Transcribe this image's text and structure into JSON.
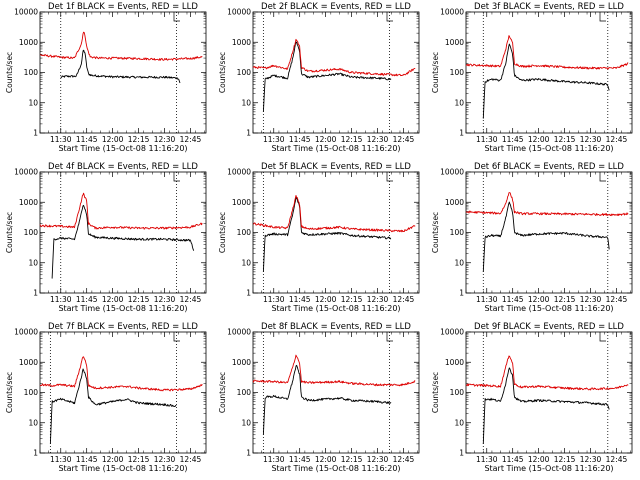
{
  "chart_data": [
    {
      "type": "line",
      "title": "Det 1f BLACK = Events, RED = LLD",
      "xlabel": "Start Time (15-Oct-08 11:16:20)",
      "ylabel": "Counts/sec",
      "yscale": "log",
      "ylim": [
        1,
        10000
      ],
      "xlim": [
        "11:18",
        "12:54"
      ],
      "xticks": [
        "11:30",
        "11:45",
        "12:00",
        "12:15",
        "12:30",
        "12:45"
      ],
      "yticks": [
        "1",
        "10",
        "100",
        "1000",
        "10000"
      ],
      "markers": [
        "11:30",
        "12:37"
      ],
      "series": [
        {
          "color": "#000000",
          "x": [
            "11:30",
            "11:33",
            "11:39",
            "11:42",
            "11:43",
            "11:44",
            "11:45",
            "11:46",
            "11:48",
            "12:00",
            "12:15",
            "12:30",
            "12:38",
            "12:39"
          ],
          "values": [
            70,
            75,
            75,
            200,
            560,
            450,
            160,
            90,
            80,
            72,
            70,
            70,
            65,
            45
          ]
        },
        {
          "color": "#dd0000",
          "x": [
            "11:18",
            "11:30",
            "11:38",
            "11:42",
            "11:43",
            "11:44",
            "11:45",
            "11:47",
            "11:52",
            "12:00",
            "12:15",
            "12:30",
            "12:45",
            "12:52"
          ],
          "values": [
            380,
            320,
            300,
            900,
            2200,
            1800,
            700,
            330,
            300,
            300,
            290,
            270,
            290,
            330
          ]
        }
      ]
    },
    {
      "type": "line",
      "title": "Det 2f BLACK = Events, RED = LLD",
      "xlabel": "Start Time (15-Oct-08 11:16:20)",
      "ylabel": "Counts/sec",
      "yscale": "log",
      "ylim": [
        1,
        10000
      ],
      "xlim": [
        "11:18",
        "12:54"
      ],
      "xticks": [
        "11:30",
        "11:45",
        "12:00",
        "12:15",
        "12:30",
        "12:45"
      ],
      "yticks": [
        "1",
        "10",
        "100",
        "1000",
        "10000"
      ],
      "markers": [
        "11:24",
        "12:37"
      ],
      "series": [
        {
          "color": "#000000",
          "x": [
            "11:24",
            "11:25",
            "11:30",
            "11:38",
            "11:41",
            "11:43",
            "11:45",
            "11:46",
            "11:50",
            "12:00",
            "12:08",
            "12:15",
            "12:30",
            "12:38"
          ],
          "values": [
            5,
            60,
            80,
            65,
            300,
            1100,
            500,
            90,
            70,
            80,
            90,
            70,
            65,
            60
          ]
        },
        {
          "color": "#dd0000",
          "x": [
            "11:18",
            "11:25",
            "11:30",
            "11:38",
            "11:41",
            "11:43",
            "11:45",
            "11:46",
            "11:50",
            "12:00",
            "12:08",
            "12:15",
            "12:30",
            "12:45",
            "12:52"
          ],
          "values": [
            150,
            140,
            170,
            130,
            500,
            1300,
            700,
            150,
            110,
            120,
            130,
            100,
            90,
            80,
            140
          ]
        }
      ]
    },
    {
      "type": "line",
      "title": "Det 3f BLACK = Events, RED = LLD",
      "xlabel": "Start Time (15-Oct-08 11:16:20)",
      "ylabel": "Counts/sec",
      "yscale": "log",
      "ylim": [
        1,
        10000
      ],
      "xlim": [
        "11:18",
        "12:54"
      ],
      "xticks": [
        "11:30",
        "11:45",
        "12:00",
        "12:15",
        "12:30",
        "12:45"
      ],
      "yticks": [
        "1",
        "10",
        "100",
        "1000",
        "10000"
      ],
      "markers": [
        "11:28",
        "12:40"
      ],
      "series": [
        {
          "color": "#000000",
          "x": [
            "11:28",
            "11:29",
            "11:33",
            "11:38",
            "11:41",
            "11:43",
            "11:45",
            "11:46",
            "11:50",
            "12:00",
            "12:15",
            "12:30",
            "12:40",
            "12:41"
          ],
          "values": [
            3,
            50,
            60,
            55,
            200,
            900,
            400,
            80,
            55,
            60,
            50,
            45,
            40,
            25
          ]
        },
        {
          "color": "#dd0000",
          "x": [
            "11:18",
            "11:30",
            "11:38",
            "11:41",
            "11:43",
            "11:45",
            "11:46",
            "11:50",
            "12:00",
            "12:15",
            "12:30",
            "12:45",
            "12:52"
          ],
          "values": [
            180,
            170,
            160,
            600,
            1700,
            900,
            200,
            160,
            170,
            150,
            140,
            140,
            200
          ]
        }
      ]
    },
    {
      "type": "line",
      "title": "Det 4f BLACK = Events, RED = LLD",
      "xlabel": "Start Time (15-Oct-08 11:16:20)",
      "ylabel": "Counts/sec",
      "yscale": "log",
      "ylim": [
        1,
        10000
      ],
      "xlim": [
        "11:18",
        "12:54"
      ],
      "xticks": [
        "11:30",
        "11:45",
        "12:00",
        "12:15",
        "12:30",
        "12:45"
      ],
      "yticks": [
        "1",
        "10",
        "100",
        "1000",
        "10000"
      ],
      "markers": [
        "11:30",
        "12:37"
      ],
      "series": [
        {
          "color": "#000000",
          "x": [
            "11:25",
            "11:26",
            "11:30",
            "11:38",
            "11:41",
            "11:43",
            "11:45",
            "11:46",
            "11:50",
            "12:00",
            "12:15",
            "12:30",
            "12:45",
            "12:47"
          ],
          "values": [
            3,
            60,
            65,
            60,
            250,
            900,
            400,
            90,
            70,
            65,
            60,
            60,
            55,
            25
          ]
        },
        {
          "color": "#dd0000",
          "x": [
            "11:18",
            "11:30",
            "11:38",
            "11:41",
            "11:43",
            "11:45",
            "11:46",
            "11:50",
            "12:00",
            "12:15",
            "12:30",
            "12:45",
            "12:52"
          ],
          "values": [
            170,
            160,
            150,
            700,
            2000,
            1100,
            200,
            140,
            150,
            140,
            140,
            150,
            200
          ]
        }
      ]
    },
    {
      "type": "line",
      "title": "Det 5f BLACK = Events, RED = LLD",
      "xlabel": "Start Time (15-Oct-08 11:16:20)",
      "ylabel": "Counts/sec",
      "yscale": "log",
      "ylim": [
        1,
        10000
      ],
      "xlim": [
        "11:18",
        "12:54"
      ],
      "xticks": [
        "11:30",
        "11:45",
        "12:00",
        "12:15",
        "12:30",
        "12:45"
      ],
      "yticks": [
        "1",
        "10",
        "100",
        "1000",
        "10000"
      ],
      "markers": [
        "11:24",
        "12:37"
      ],
      "series": [
        {
          "color": "#000000",
          "x": [
            "11:24",
            "11:25",
            "11:30",
            "11:38",
            "11:41",
            "11:43",
            "11:45",
            "11:46",
            "11:50",
            "12:00",
            "12:08",
            "12:15",
            "12:30",
            "12:38"
          ],
          "values": [
            5,
            80,
            90,
            85,
            400,
            1500,
            700,
            100,
            85,
            90,
            95,
            80,
            70,
            65
          ]
        },
        {
          "color": "#dd0000",
          "x": [
            "11:18",
            "11:25",
            "11:30",
            "11:38",
            "11:41",
            "11:43",
            "11:45",
            "11:46",
            "11:50",
            "12:00",
            "12:08",
            "12:15",
            "12:30",
            "12:45",
            "12:52"
          ],
          "values": [
            200,
            170,
            150,
            140,
            600,
            1700,
            800,
            160,
            130,
            140,
            150,
            130,
            120,
            110,
            170
          ]
        }
      ]
    },
    {
      "type": "line",
      "title": "Det 6f BLACK = Events, RED = LLD",
      "xlabel": "Start Time (15-Oct-08 11:16:20)",
      "ylabel": "Counts/sec",
      "yscale": "log",
      "ylim": [
        1,
        10000
      ],
      "xlim": [
        "11:18",
        "12:54"
      ],
      "xticks": [
        "11:30",
        "11:45",
        "12:00",
        "12:15",
        "12:30",
        "12:45"
      ],
      "yticks": [
        "1",
        "10",
        "100",
        "1000",
        "10000"
      ],
      "markers": [
        "11:28",
        "12:40"
      ],
      "series": [
        {
          "color": "#000000",
          "x": [
            "11:28",
            "11:29",
            "11:33",
            "11:38",
            "11:41",
            "11:43",
            "11:45",
            "11:46",
            "11:50",
            "12:00",
            "12:15",
            "12:30",
            "12:40",
            "12:41"
          ],
          "values": [
            5,
            70,
            80,
            75,
            300,
            1000,
            450,
            100,
            80,
            90,
            95,
            75,
            70,
            20
          ]
        },
        {
          "color": "#dd0000",
          "x": [
            "11:18",
            "11:30",
            "11:38",
            "11:41",
            "11:43",
            "11:45",
            "11:46",
            "11:50",
            "12:00",
            "12:15",
            "12:30",
            "12:45",
            "12:52"
          ],
          "values": [
            480,
            450,
            430,
            900,
            2300,
            1200,
            480,
            420,
            420,
            410,
            400,
            390,
            420
          ]
        }
      ]
    },
    {
      "type": "line",
      "title": "Det 7f BLACK = Events, RED = LLD",
      "xlabel": "Start Time (15-Oct-08 11:16:20)",
      "ylabel": "Counts/sec",
      "yscale": "log",
      "ylim": [
        1,
        10000
      ],
      "xlim": [
        "11:18",
        "12:54"
      ],
      "xticks": [
        "11:30",
        "11:45",
        "12:00",
        "12:15",
        "12:30",
        "12:45"
      ],
      "yticks": [
        "1",
        "10",
        "100",
        "1000",
        "10000"
      ],
      "markers": [
        "11:24",
        "12:37"
      ],
      "series": [
        {
          "color": "#000000",
          "x": [
            "11:24",
            "11:25",
            "11:30",
            "11:38",
            "11:41",
            "11:43",
            "11:45",
            "11:46",
            "11:50",
            "12:00",
            "12:08",
            "12:15",
            "12:30",
            "12:37"
          ],
          "values": [
            2,
            50,
            60,
            45,
            200,
            600,
            300,
            70,
            40,
            50,
            60,
            45,
            40,
            35
          ]
        },
        {
          "color": "#dd0000",
          "x": [
            "11:18",
            "11:25",
            "11:30",
            "11:38",
            "11:41",
            "11:43",
            "11:45",
            "11:46",
            "11:50",
            "12:00",
            "12:08",
            "12:15",
            "12:30",
            "12:45",
            "12:52"
          ],
          "values": [
            180,
            170,
            180,
            160,
            600,
            1700,
            800,
            170,
            140,
            150,
            160,
            140,
            120,
            130,
            180
          ]
        }
      ]
    },
    {
      "type": "line",
      "title": "Det 8f BLACK = Events, RED = LLD",
      "xlabel": "Start Time (15-Oct-08 11:16:20)",
      "ylabel": "Counts/sec",
      "yscale": "log",
      "ylim": [
        1,
        10000
      ],
      "xlim": [
        "11:18",
        "12:54"
      ],
      "xticks": [
        "11:30",
        "11:45",
        "12:00",
        "12:15",
        "12:30",
        "12:45"
      ],
      "yticks": [
        "1",
        "10",
        "100",
        "1000",
        "10000"
      ],
      "markers": [
        "11:24",
        "12:37"
      ],
      "series": [
        {
          "color": "#000000",
          "x": [
            "11:24",
            "11:25",
            "11:30",
            "11:38",
            "11:41",
            "11:43",
            "11:45",
            "11:46",
            "11:50",
            "12:00",
            "12:08",
            "12:15",
            "12:30",
            "12:38"
          ],
          "values": [
            4,
            70,
            75,
            60,
            250,
            800,
            400,
            70,
            55,
            60,
            65,
            55,
            50,
            45
          ]
        },
        {
          "color": "#dd0000",
          "x": [
            "11:18",
            "11:30",
            "11:38",
            "11:41",
            "11:43",
            "11:45",
            "11:46",
            "11:50",
            "12:00",
            "12:08",
            "12:15",
            "12:30",
            "12:45",
            "12:52"
          ],
          "values": [
            240,
            230,
            210,
            700,
            1800,
            900,
            230,
            210,
            220,
            230,
            200,
            180,
            180,
            240
          ]
        }
      ]
    },
    {
      "type": "line",
      "title": "Det 9f BLACK = Events, RED = LLD",
      "xlabel": "Start Time (15-Oct-08 11:16:20)",
      "ylabel": "Counts/sec",
      "yscale": "log",
      "ylim": [
        1,
        10000
      ],
      "xlim": [
        "11:18",
        "12:54"
      ],
      "xticks": [
        "11:30",
        "11:45",
        "12:00",
        "12:15",
        "12:30",
        "12:45"
      ],
      "yticks": [
        "1",
        "10",
        "100",
        "1000",
        "10000"
      ],
      "markers": [
        "11:28",
        "12:40"
      ],
      "series": [
        {
          "color": "#000000",
          "x": [
            "11:28",
            "11:29",
            "11:33",
            "11:38",
            "11:41",
            "11:43",
            "11:45",
            "11:46",
            "11:50",
            "12:00",
            "12:15",
            "12:30",
            "12:40",
            "12:41"
          ],
          "values": [
            2,
            60,
            60,
            50,
            200,
            700,
            350,
            70,
            50,
            55,
            50,
            45,
            40,
            25
          ]
        },
        {
          "color": "#dd0000",
          "x": [
            "11:18",
            "11:30",
            "11:38",
            "11:41",
            "11:43",
            "11:45",
            "11:46",
            "11:50",
            "12:00",
            "12:15",
            "12:30",
            "12:45",
            "12:52"
          ],
          "values": [
            180,
            170,
            160,
            700,
            1800,
            900,
            190,
            150,
            160,
            140,
            130,
            140,
            190
          ]
        }
      ]
    }
  ]
}
